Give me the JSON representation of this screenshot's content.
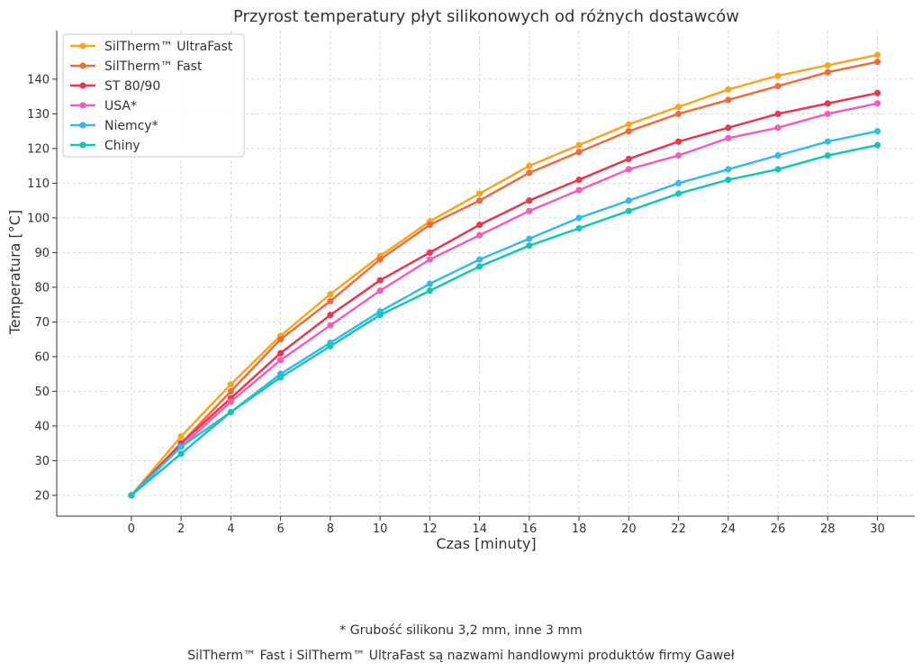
{
  "chart_data": {
    "type": "line",
    "title": "Przyrost temperatury płyt silikonowych od różnych dostawców",
    "xlabel": "Czas [minuty]",
    "ylabel": "Temperatura [°C]",
    "x": [
      0,
      2,
      4,
      6,
      8,
      10,
      12,
      14,
      16,
      18,
      20,
      22,
      24,
      26,
      28,
      30
    ],
    "xlim": [
      -3,
      31.5
    ],
    "ylim": [
      14,
      154
    ],
    "xticks": [
      "0",
      "2",
      "4",
      "6",
      "8",
      "10",
      "12",
      "14",
      "16",
      "18",
      "20",
      "22",
      "24",
      "26",
      "28",
      "30"
    ],
    "yticks": [
      "20",
      "30",
      "40",
      "50",
      "60",
      "70",
      "80",
      "90",
      "100",
      "110",
      "120",
      "130",
      "140"
    ],
    "grid": true,
    "legend_position": "top-left",
    "series": [
      {
        "name": "SilTherm™ UltraFast",
        "color": "#F5A623",
        "values": [
          20,
          37,
          52,
          66,
          78,
          89,
          99,
          107,
          115,
          121,
          127,
          132,
          137,
          141,
          144,
          147
        ]
      },
      {
        "name": "SilTherm™ Fast",
        "color": "#F26B38",
        "values": [
          20,
          35,
          50,
          65,
          76,
          88,
          98,
          105,
          113,
          119,
          125,
          130,
          134,
          138,
          142,
          145
        ]
      },
      {
        "name": "ST 80/90",
        "color": "#E8384F",
        "values": [
          20,
          35,
          48,
          61,
          72,
          82,
          90,
          98,
          105,
          111,
          117,
          122,
          126,
          130,
          133,
          136
        ]
      },
      {
        "name": "USA*",
        "color": "#F45DBA",
        "values": [
          20,
          34,
          47,
          59,
          69,
          79,
          88,
          95,
          102,
          108,
          114,
          118,
          123,
          126,
          130,
          133
        ]
      },
      {
        "name": "Niemcy*",
        "color": "#37B9EA",
        "values": [
          20,
          34,
          44,
          55,
          64,
          73,
          81,
          88,
          94,
          100,
          105,
          110,
          114,
          118,
          122,
          125
        ]
      },
      {
        "name": "Chiny",
        "color": "#16C5B4",
        "values": [
          20,
          32,
          44,
          54,
          63,
          72,
          79,
          86,
          92,
          97,
          102,
          107,
          111,
          114,
          118,
          121
        ]
      }
    ]
  },
  "footnotes": {
    "line1": "* Grubość silikonu 3,2 mm, inne 3 mm",
    "line2": "SilTherm™ Fast i SilTherm™ UltraFast są nazwami handlowymi produktów firmy Gaweł"
  }
}
